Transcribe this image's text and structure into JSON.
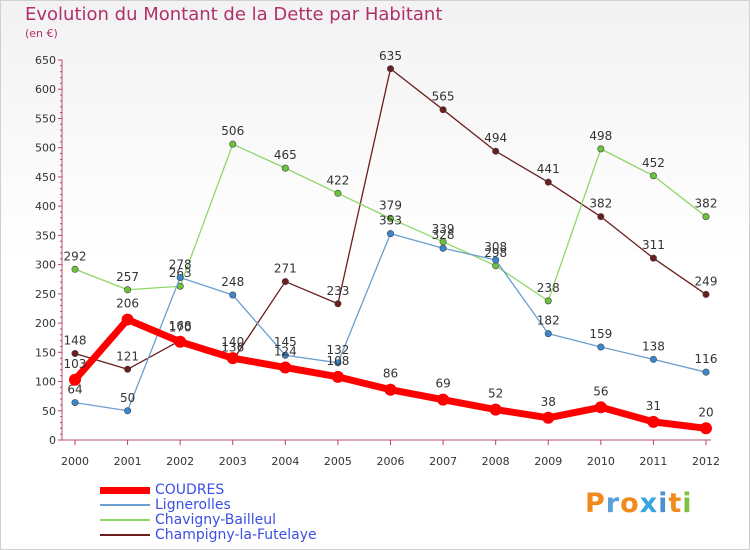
{
  "title": "Evolution du Montant de la Dette par Habitant",
  "subtitle": "(en €)",
  "logo": {
    "text": "Proxiti",
    "letter_colors": [
      "#f08a1c",
      "#5a9fd6",
      "#f08a1c",
      "#3aa5dc",
      "#4f8fd4",
      "#f08a1c",
      "#7cc142"
    ]
  },
  "chart_data": {
    "type": "line",
    "x": [
      "2000",
      "2001",
      "2002",
      "2003",
      "2004",
      "2005",
      "2006",
      "2007",
      "2008",
      "2009",
      "2010",
      "2011",
      "2012"
    ],
    "ylim": [
      0,
      650
    ],
    "yticks": [
      0,
      50,
      100,
      150,
      200,
      250,
      300,
      350,
      400,
      450,
      500,
      550,
      600,
      650
    ],
    "grid": false,
    "legend_position": "bottom-left",
    "series": [
      {
        "name": "Champigny-la-Futelaye",
        "color": "#6b1e1e",
        "marker": "#6b1e1e",
        "width": 1.3,
        "values": [
          148,
          121,
          170,
          136,
          271,
          233,
          635,
          565,
          494,
          441,
          382,
          311,
          249
        ],
        "labels": [
          "148",
          "121",
          "170",
          "136",
          "271",
          "233",
          "635",
          "565",
          "494",
          "441",
          "382",
          "311",
          "249"
        ]
      },
      {
        "name": "Chavigny-Bailleul",
        "color": "#8ed86a",
        "marker": "#6cc23a",
        "width": 1.3,
        "values": [
          292,
          257,
          263,
          506,
          465,
          422,
          379,
          339,
          298,
          238,
          498,
          452,
          382
        ],
        "labels": [
          "292",
          "257",
          "263",
          "506",
          "465",
          "422",
          "379",
          "339",
          "298",
          "238",
          "498",
          "452",
          "382"
        ]
      },
      {
        "name": "Lignerolles",
        "color": "#6a9fce",
        "marker": "#3a86cf",
        "width": 1.3,
        "values": [
          64,
          50,
          278,
          248,
          145,
          132,
          353,
          328,
          308,
          182,
          159,
          138,
          116
        ],
        "labels": [
          "64",
          "50",
          "278",
          "248",
          "145",
          "132",
          "353",
          "328",
          "308",
          "182",
          "159",
          "138",
          "116"
        ]
      },
      {
        "name": "COUDRES",
        "color": "#ff0000",
        "marker": "#ff0000",
        "width": 7,
        "values": [
          103,
          206,
          168,
          140,
          124,
          108,
          86,
          69,
          52,
          38,
          56,
          31,
          20
        ],
        "labels": [
          "103",
          "206",
          "168",
          "140",
          "124",
          "108",
          "86",
          "69",
          "52",
          "38",
          "56",
          "31",
          "20"
        ]
      }
    ]
  },
  "legend": [
    {
      "label": "COUDRES",
      "color": "#ff0000",
      "thickness": 7
    },
    {
      "label": "Lignerolles",
      "color": "#6a9fce",
      "thickness": 2
    },
    {
      "label": "Chavigny-Bailleul",
      "color": "#8ed86a",
      "thickness": 2
    },
    {
      "label": "Champigny-la-Futelaye",
      "color": "#6b1e1e",
      "thickness": 2
    }
  ]
}
